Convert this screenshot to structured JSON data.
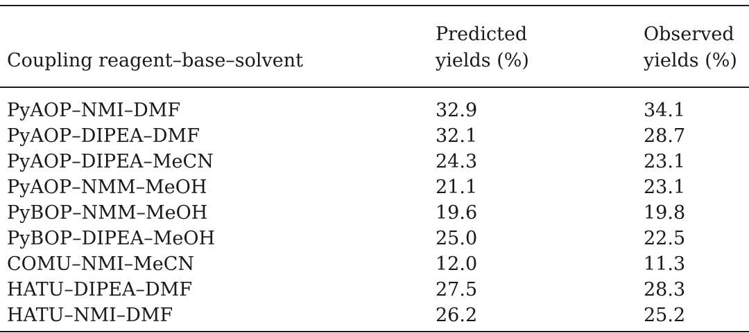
{
  "table": {
    "headers": {
      "col1": "Coupling reagent–base–solvent",
      "col2_line1": "Predicted",
      "col2_line2": "yields (%)",
      "col3_line1": "Observed",
      "col3_line2": "yields (%)"
    },
    "rows": [
      {
        "reagent": "PyAOP–NMI–DMF",
        "predicted": "32.9",
        "observed": "34.1"
      },
      {
        "reagent": "PyAOP–DIPEA–DMF",
        "predicted": "32.1",
        "observed": "28.7"
      },
      {
        "reagent": "PyAOP–DIPEA–MeCN",
        "predicted": "24.3",
        "observed": "23.1"
      },
      {
        "reagent": "PyAOP–NMM–MeOH",
        "predicted": "21.1",
        "observed": "23.1"
      },
      {
        "reagent": "PyBOP–NMM–MeOH",
        "predicted": "19.6",
        "observed": "19.8"
      },
      {
        "reagent": "PyBOP–DIPEA–MeOH",
        "predicted": "25.0",
        "observed": "22.5"
      },
      {
        "reagent": "COMU–NMI–MeCN",
        "predicted": "12.0",
        "observed": "11.3"
      },
      {
        "reagent": "HATU–DIPEA–DMF",
        "predicted": "27.5",
        "observed": "28.3"
      },
      {
        "reagent": "HATU–NMI–DMF",
        "predicted": "26.2",
        "observed": "25.2"
      }
    ]
  }
}
